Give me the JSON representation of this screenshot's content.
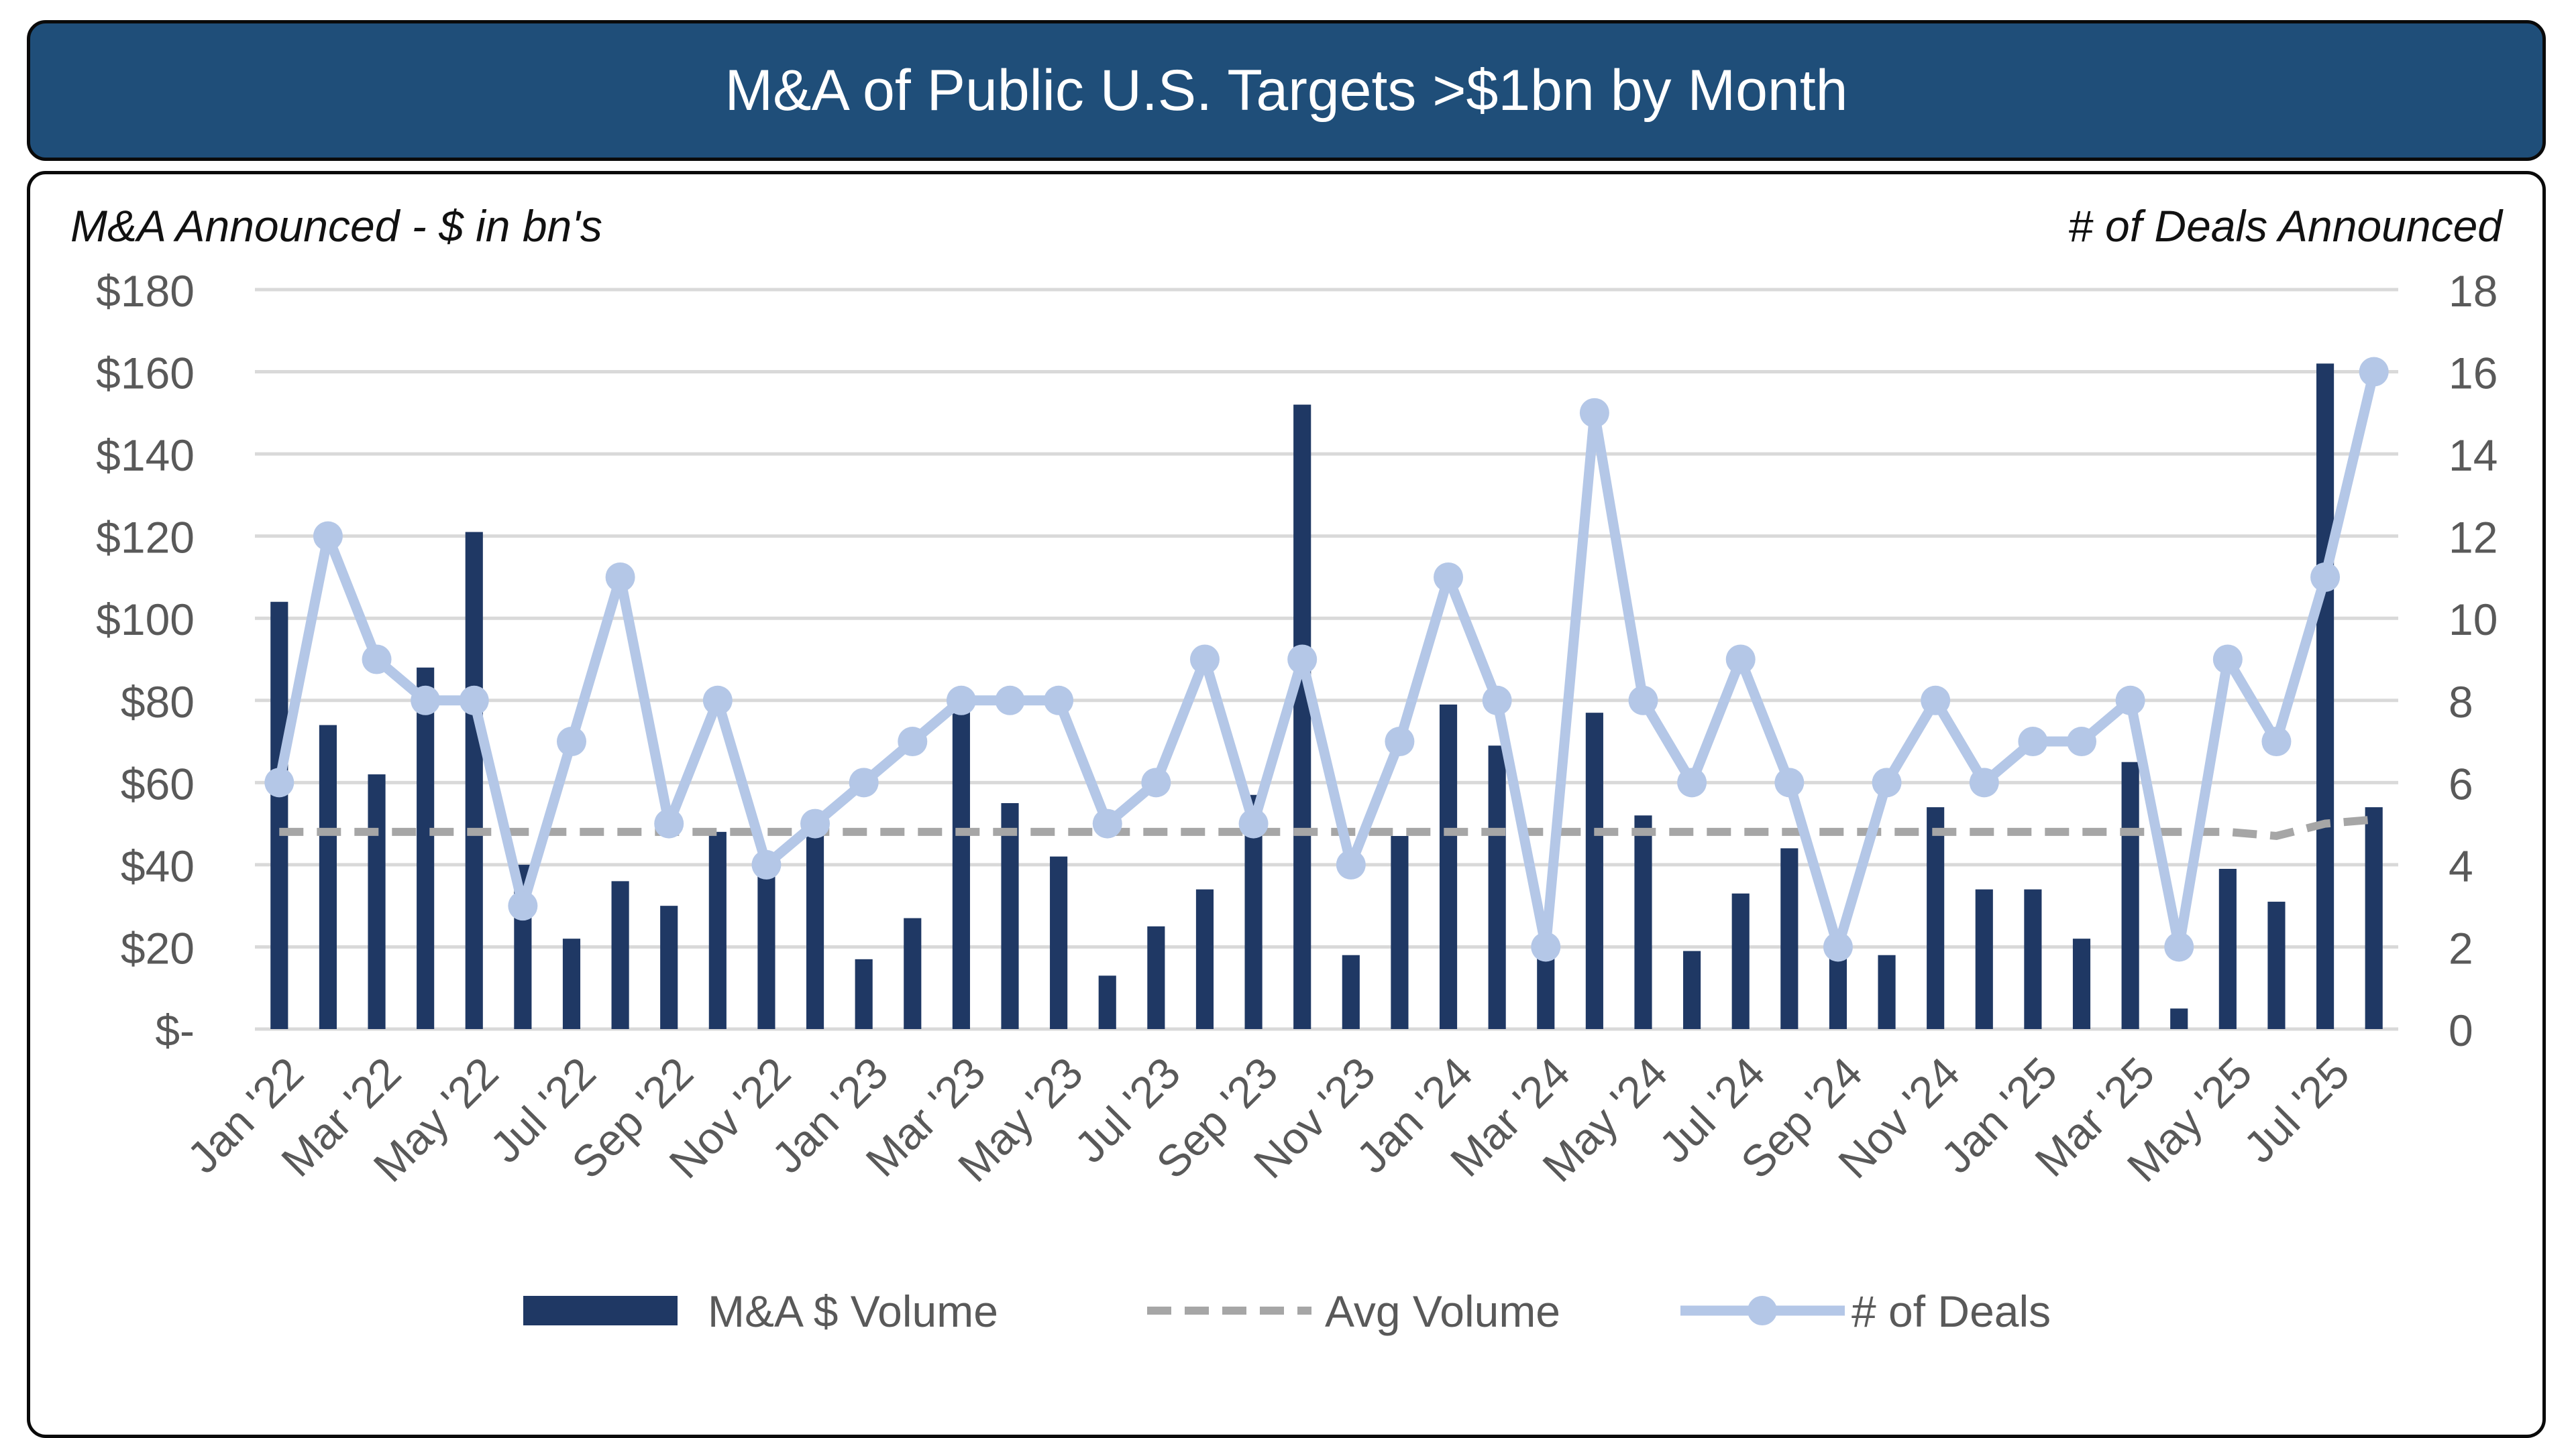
{
  "title": "M&A of Public U.S. Targets >$1bn by Month",
  "colors": {
    "header_bg": "#1f4e79",
    "bar": "#1f3864",
    "avg_line": "#a6a6a6",
    "deals_line": "#b4c7e7",
    "axis_text": "#595959",
    "grid": "#d9d9d9"
  },
  "chart_data": {
    "type": "bar",
    "title": "M&A of Public U.S. Targets >$1bn by Month",
    "ylabel": "M&A Announced - $ in bn's",
    "y2label": "# of Deals Announced",
    "xlabel": "",
    "ylim": [
      0,
      180
    ],
    "y2lim": [
      0,
      18
    ],
    "yticks": [
      "$-",
      "$20",
      "$40",
      "$60",
      "$80",
      "$100",
      "$120",
      "$140",
      "$160",
      "$180"
    ],
    "y2ticks": [
      "0",
      "2",
      "4",
      "6",
      "8",
      "10",
      "12",
      "14",
      "16",
      "18"
    ],
    "grid": true,
    "legend_position": "bottom",
    "categories": [
      "Jan '22",
      "Feb '22",
      "Mar '22",
      "Apr '22",
      "May '22",
      "Jun '22",
      "Jul '22",
      "Aug '22",
      "Sep '22",
      "Oct '22",
      "Nov '22",
      "Dec '22",
      "Jan '23",
      "Feb '23",
      "Mar '23",
      "Apr '23",
      "May '23",
      "Jun '23",
      "Jul '23",
      "Aug '23",
      "Sep '23",
      "Oct '23",
      "Nov '23",
      "Dec '23",
      "Jan '24",
      "Feb '24",
      "Mar '24",
      "Apr '24",
      "May '24",
      "Jun '24",
      "Jul '24",
      "Aug '24",
      "Sep '24",
      "Oct '24",
      "Nov '24",
      "Dec '24",
      "Jan '25",
      "Feb '25",
      "Mar '25",
      "Apr '25",
      "May '25",
      "Jun '25",
      "Jul '25",
      "Aug '25"
    ],
    "tick_labels": [
      "Jan '22",
      "Mar '22",
      "May '22",
      "Jul '22",
      "Sep '22",
      "Nov '22",
      "Jan '23",
      "Mar '23",
      "May '23",
      "Jul '23",
      "Sep '23",
      "Nov '23",
      "Jan '24",
      "Mar '24",
      "May '24",
      "Jul '24",
      "Sep '24",
      "Nov '24",
      "Jan '25",
      "Mar '25",
      "May '25",
      "Jul '25"
    ],
    "series": [
      {
        "name": "M&A $ Volume",
        "type": "bar",
        "axis": "left",
        "values": [
          104,
          74,
          62,
          88,
          121,
          40,
          22,
          36,
          30,
          48,
          38,
          48,
          17,
          27,
          78,
          55,
          42,
          13,
          25,
          34,
          57,
          152,
          18,
          47,
          79,
          69,
          20,
          77,
          52,
          19,
          33,
          44,
          20,
          18,
          54,
          34,
          34,
          22,
          65,
          5,
          39,
          31,
          162,
          54
        ]
      },
      {
        "name": "Avg Volume",
        "type": "line",
        "style": "dashed",
        "axis": "left",
        "values": [
          48,
          48,
          48,
          48,
          48,
          48,
          48,
          48,
          48,
          48,
          48,
          48,
          48,
          48,
          48,
          48,
          48,
          48,
          48,
          48,
          48,
          48,
          48,
          48,
          48,
          48,
          48,
          48,
          48,
          48,
          48,
          48,
          48,
          48,
          48,
          48,
          48,
          48,
          48,
          48,
          48,
          47,
          50,
          51
        ]
      },
      {
        "name": "# of Deals",
        "type": "line",
        "axis": "right",
        "marker": "circle",
        "values": [
          6,
          12,
          9,
          8,
          8,
          3,
          7,
          11,
          5,
          8,
          4,
          5,
          6,
          7,
          8,
          8,
          8,
          5,
          6,
          9,
          5,
          9,
          4,
          7,
          11,
          8,
          2,
          15,
          8,
          6,
          9,
          6,
          2,
          6,
          8,
          6,
          7,
          7,
          8,
          2,
          9,
          7,
          11,
          16
        ]
      }
    ]
  }
}
